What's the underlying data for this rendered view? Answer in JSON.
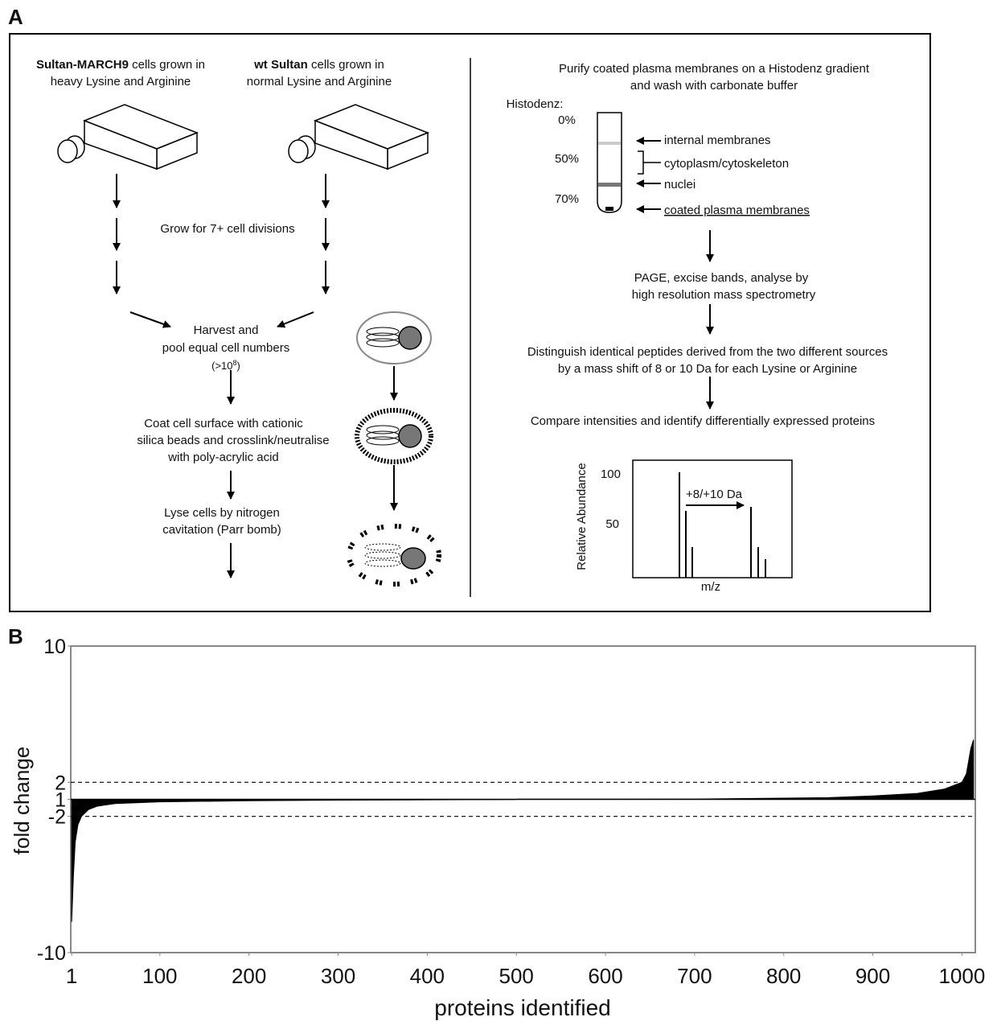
{
  "panel_a": {
    "label": "A",
    "left_sources": [
      {
        "bold": "Sultan-MARCH9",
        "rest": " cells grown in",
        "line2": "heavy Lysine and Arginine"
      },
      {
        "bold": "wt Sultan",
        "rest": " cells grown in",
        "line2": "normal Lysine and Arginine"
      }
    ],
    "grow": "Grow for 7+ cell divisions",
    "harvest": [
      "Harvest and",
      "pool equal cell numbers"
    ],
    "harvest_count": {
      "pre": "(>10",
      "sup": "8",
      "post": ")"
    },
    "coat": [
      "Coat cell surface with cationic",
      "silica beads and crosslink/neutralise",
      "with poly-acrylic acid"
    ],
    "lyse": [
      "Lyse cells by nitrogen",
      "cavitation (Parr bomb)"
    ],
    "purify": [
      "Purify coated plasma membranes on a Histodenz gradient",
      "and wash with carbonate buffer"
    ],
    "gradient": {
      "title": "Histodenz:",
      "levels": [
        "0%",
        "50%",
        "70%"
      ]
    },
    "fractions": [
      "internal membranes",
      "cytoplasm/cytoskeleton",
      "nuclei",
      "coated plasma membranes"
    ],
    "page": [
      "PAGE, excise bands, analyse by",
      "high resolution mass spectrometry"
    ],
    "distinguish": [
      "Distinguish identical peptides derived from the two different sources",
      "by a mass shift of 8 or 10 Da for each Lysine or Arginine"
    ],
    "compare": "Compare intensities and identify differentially expressed proteins",
    "spectrum": {
      "ylabel": "Relative Abundance",
      "xlabel": "m/z",
      "ticks": [
        "100",
        "50"
      ],
      "shift": "+8/+10 Da"
    }
  },
  "chart_data": {
    "label": "B",
    "type": "area",
    "scale": "fold-change",
    "xlabel": "proteins identified",
    "ylabel": "fold change",
    "x": [
      1,
      3,
      5,
      8,
      12,
      20,
      30,
      50,
      100,
      200,
      300,
      400,
      500,
      501,
      600,
      700,
      800,
      850,
      900,
      950,
      980,
      1000,
      1005,
      1010,
      1013
    ],
    "values": [
      -8.2,
      -5.5,
      -3.5,
      -2.5,
      -2,
      -1.6,
      -1.4,
      -1.25,
      -1.15,
      -1.08,
      -1.05,
      -1.03,
      -1.01,
      1.01,
      1.01,
      1.02,
      1.07,
      1.1,
      1.2,
      1.35,
      1.6,
      2.0,
      2.5,
      4.0,
      4.5
    ],
    "color": "#000000",
    "xlim": [
      0,
      1015
    ],
    "ylim": [
      -10,
      10
    ],
    "xticks": [
      1,
      100,
      200,
      300,
      400,
      500,
      600,
      700,
      800,
      900,
      1000
    ],
    "yticks": [
      10,
      2,
      1,
      -2,
      -10
    ],
    "dashed_lines": [
      2,
      -2
    ]
  }
}
